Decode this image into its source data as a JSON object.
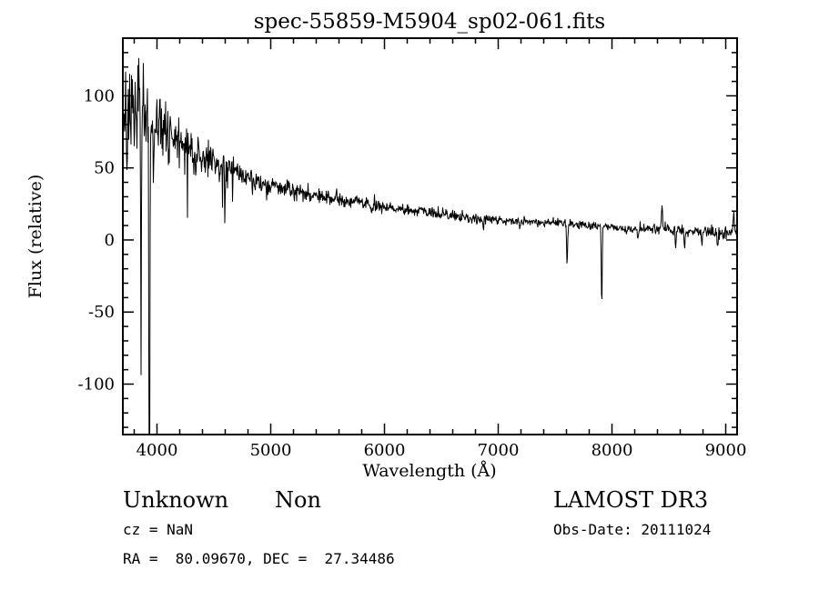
{
  "title": "spec-55859-M5904_sp02-061.fits",
  "footer": {
    "classification": "Unknown",
    "subclass": "Non",
    "survey": "LAMOST DR3",
    "cz": "cz = NaN",
    "obs_date": "Obs-Date: 20111024",
    "coords": "RA =  80.09670, DEC =  27.34486"
  },
  "chart_data": {
    "type": "line",
    "title": "spec-55859-M5904_sp02-061.fits",
    "xlabel": "Wavelength (Å)",
    "ylabel": "Flux (relative)",
    "xlim": [
      3700,
      9100
    ],
    "ylim": [
      -135,
      140
    ],
    "x_major_ticks": [
      4000,
      5000,
      6000,
      7000,
      8000,
      9000
    ],
    "x_minor_step": 200,
    "y_major_ticks": [
      -100,
      -50,
      0,
      50,
      100
    ],
    "y_minor_step": 10,
    "line_color": "#000000",
    "grid": false,
    "legend": "none",
    "sample_step": 4,
    "seed": 7,
    "continuum": {
      "x": [
        3700,
        3750,
        3800,
        3850,
        3900,
        3950,
        4000,
        4100,
        4200,
        4300,
        4400,
        4500,
        4600,
        4700,
        4800,
        4900,
        5000,
        5200,
        5400,
        5600,
        5800,
        6000,
        6200,
        6400,
        6600,
        6800,
        7000,
        7200,
        7400,
        7600,
        7800,
        8000,
        8200,
        8400,
        8600,
        8800,
        9000,
        9100
      ],
      "y": [
        85,
        95,
        100,
        95,
        90,
        85,
        82,
        75,
        70,
        64,
        58,
        54,
        50,
        47,
        44,
        41,
        38,
        34,
        31,
        28,
        26,
        23,
        21,
        19,
        17,
        15,
        14,
        13,
        12,
        11,
        10,
        9,
        8,
        7.5,
        7,
        6,
        5,
        6
      ]
    },
    "noise_sigma": {
      "x": [
        3700,
        3800,
        3900,
        4000,
        4200,
        4400,
        4600,
        4800,
        5000,
        5500,
        6000,
        6500,
        7000,
        7500,
        8000,
        8500,
        9000,
        9100
      ],
      "sigma": [
        18,
        16,
        14,
        10,
        8,
        7,
        5,
        4,
        3.5,
        2.5,
        2,
        1.8,
        1.5,
        1.5,
        1.5,
        1.8,
        2,
        3
      ]
    },
    "extra_neg_spikes": {
      "below_wl": 4700,
      "prob": 0.05,
      "max_depth": 45
    },
    "features": [
      {
        "center": 3736,
        "amp": -55,
        "width": 3
      },
      {
        "center": 3770,
        "amp": -50,
        "width": 3
      },
      {
        "center": 3800,
        "amp": -45,
        "width": 3
      },
      {
        "center": 3860,
        "amp": -190,
        "width": 3
      },
      {
        "center": 3933,
        "amp": -330,
        "width": 4
      },
      {
        "center": 3970,
        "amp": -60,
        "width": 3
      },
      {
        "center": 4101,
        "amp": -20,
        "width": 4
      },
      {
        "center": 4340,
        "amp": -16,
        "width": 4
      },
      {
        "center": 4861,
        "amp": -10,
        "width": 4
      },
      {
        "center": 5577,
        "amp": 10,
        "width": 4
      },
      {
        "center": 5890,
        "amp": -7,
        "width": 4
      },
      {
        "center": 6563,
        "amp": -5,
        "width": 4
      },
      {
        "center": 6870,
        "amp": -6,
        "width": 5
      },
      {
        "center": 7190,
        "amp": -4,
        "width": 5
      },
      {
        "center": 7605,
        "amp": -26,
        "width": 5
      },
      {
        "center": 7910,
        "amp": -56,
        "width": 4
      },
      {
        "center": 8230,
        "amp": -6,
        "width": 4
      },
      {
        "center": 8440,
        "amp": 17,
        "width": 5
      },
      {
        "center": 8560,
        "amp": -11,
        "width": 4
      },
      {
        "center": 8640,
        "amp": -13,
        "width": 4
      },
      {
        "center": 8790,
        "amp": -8,
        "width": 4
      },
      {
        "center": 8930,
        "amp": -9,
        "width": 5
      },
      {
        "center": 9070,
        "amp": 12,
        "width": 6
      }
    ]
  }
}
